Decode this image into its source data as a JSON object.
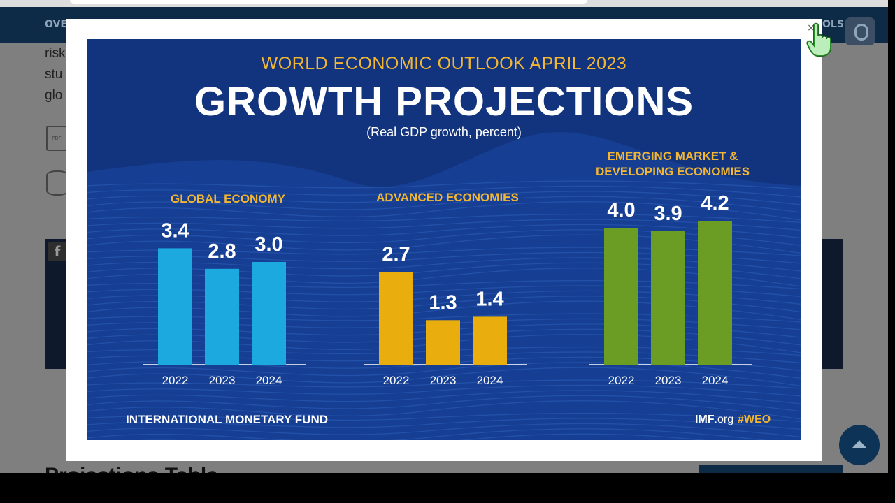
{
  "background_page": {
    "nav_left": "OVE",
    "nav_right": "OLS",
    "text_lines": [
      "risk",
      "stu",
      "glo"
    ],
    "pdf_label": "PDF",
    "facebook_label": "f",
    "heading_partial": "Projections Table"
  },
  "infographic": {
    "weo_title": "WORLD ECONOMIC OUTLOOK APRIL 2023",
    "main_title": "GROWTH PROJECTIONS",
    "subtitle": "(Real GDP growth, percent)",
    "footer_left": "INTERNATIONAL MONETARY FUND",
    "footer_site_bold": "IMF",
    "footer_site_rest": ".org",
    "footer_hashtag": "#WEO"
  },
  "colors": {
    "global": "#1ba9e0",
    "advanced": "#e9ae0e",
    "emerging": "#6b9c24",
    "title_accent": "#f2b632",
    "background": "#12347e"
  },
  "chart_data": {
    "type": "bar",
    "title": "GROWTH PROJECTIONS",
    "ylabel": "Real GDP growth, percent",
    "ylim": [
      0,
      4.5
    ],
    "groups": [
      {
        "name": "GLOBAL ECONOMY",
        "categories": [
          "2022",
          "2023",
          "2024"
        ],
        "values": [
          3.4,
          2.8,
          3.0
        ],
        "labels": [
          "3.4",
          "2.8",
          "3.0"
        ],
        "color_key": "global"
      },
      {
        "name": "ADVANCED ECONOMIES",
        "categories": [
          "2022",
          "2023",
          "2024"
        ],
        "values": [
          2.7,
          1.3,
          1.4
        ],
        "labels": [
          "2.7",
          "1.3",
          "1.4"
        ],
        "color_key": "advanced"
      },
      {
        "name": "EMERGING MARKET & DEVELOPING ECONOMIES",
        "title_lines": [
          "EMERGING MARKET &",
          "DEVELOPING ECONOMIES"
        ],
        "categories": [
          "2022",
          "2023",
          "2024"
        ],
        "values": [
          4.0,
          3.9,
          4.2
        ],
        "labels": [
          "4.0",
          "3.9",
          "4.2"
        ],
        "color_key": "emerging"
      }
    ]
  },
  "modal": {
    "close_label": "×"
  }
}
